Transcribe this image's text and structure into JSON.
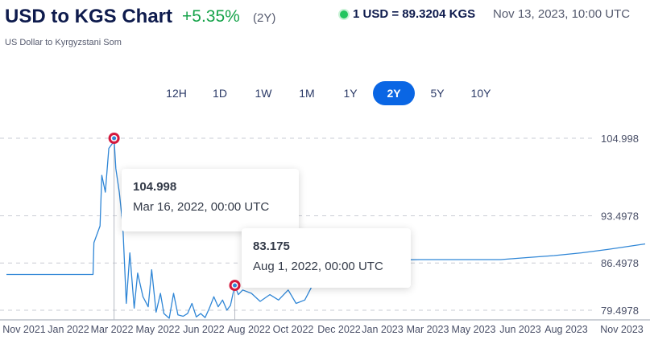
{
  "header": {
    "title": "USD to KGS Chart",
    "change": "+5.35%",
    "period": "(2Y)",
    "rate": "1 USD = 89.3204 KGS",
    "rate_time": "Nov 13, 2023, 10:00 UTC",
    "subtitle": "US Dollar to Kyrgyzstani Som",
    "status_color": "#22c55e"
  },
  "ranges": [
    {
      "label": "12H",
      "active": false
    },
    {
      "label": "1D",
      "active": false
    },
    {
      "label": "1W",
      "active": false
    },
    {
      "label": "1M",
      "active": false
    },
    {
      "label": "1Y",
      "active": false
    },
    {
      "label": "2Y",
      "active": true
    },
    {
      "label": "5Y",
      "active": false
    },
    {
      "label": "10Y",
      "active": false
    }
  ],
  "tooltips": [
    {
      "value": "104.998",
      "time": "Mar 16, 2022, 00:00 UTC"
    },
    {
      "value": "83.175",
      "time": "Aug 1, 2022, 00:00 UTC"
    }
  ],
  "chart_data": {
    "type": "line",
    "line_color": "#2f86d6",
    "marker_color": "#d4193d",
    "grid": "horizontal-dashed",
    "y_ticks": [
      "104.998",
      "93.4978",
      "86.4978",
      "79.4978"
    ],
    "ylim": [
      78.3,
      104.998
    ],
    "x_ticks": [
      "Nov 2021",
      "Jan 2022",
      "Mar 2022",
      "May 2022",
      "Jun 2022",
      "Aug 2022",
      "Oct 2022",
      "Dec 2022",
      "Jan 2023",
      "Mar 2023",
      "May 2023",
      "Jun 2023",
      "Aug 2023",
      "Nov 2023"
    ],
    "series": [
      {
        "x": [
          "2021-11-13",
          "2022-02-20",
          "2022-02-21",
          "2022-02-28",
          "2022-03-02",
          "2022-03-06",
          "2022-03-10",
          "2022-03-14",
          "2022-03-16",
          "2022-03-18",
          "2022-03-22",
          "2022-03-26",
          "2022-03-30",
          "2022-04-03",
          "2022-04-08",
          "2022-04-12",
          "2022-04-18",
          "2022-04-24",
          "2022-04-28",
          "2022-05-03",
          "2022-05-08",
          "2022-05-12",
          "2022-05-18",
          "2022-05-23",
          "2022-05-28",
          "2022-06-03",
          "2022-06-08",
          "2022-06-13",
          "2022-06-18",
          "2022-06-23",
          "2022-06-28",
          "2022-07-03",
          "2022-07-08",
          "2022-07-13",
          "2022-07-18",
          "2022-07-23",
          "2022-07-27",
          "2022-08-01",
          "2022-08-05",
          "2022-08-10",
          "2022-08-20",
          "2022-08-30",
          "2022-09-10",
          "2022-09-20",
          "2022-10-01",
          "2022-10-10",
          "2022-10-20",
          "2022-10-28",
          "2022-11-05",
          "2022-11-20",
          "2022-12-01",
          "2022-12-10",
          "2023-01-01",
          "2023-03-01",
          "2023-05-01",
          "2023-06-01",
          "2023-07-01",
          "2023-08-01",
          "2023-09-01",
          "2023-10-01",
          "2023-11-13"
        ],
        "y": [
          84.8,
          84.8,
          89.5,
          92.0,
          99.5,
          97.0,
          103.5,
          104.2,
          104.998,
          100.5,
          97.0,
          92.0,
          80.5,
          88.0,
          79.8,
          85.0,
          81.5,
          80.0,
          85.5,
          79.2,
          82.0,
          79.0,
          78.3,
          82.0,
          78.8,
          78.6,
          79.0,
          80.5,
          78.5,
          79.0,
          78.4,
          79.8,
          81.5,
          80.0,
          81.0,
          79.5,
          80.2,
          83.175,
          81.8,
          82.5,
          82.0,
          80.8,
          81.8,
          81.0,
          82.5,
          80.5,
          81.0,
          83.0,
          84.5,
          85.5,
          86.5,
          86.7,
          86.9,
          87.0,
          87.0,
          87.0,
          87.3,
          87.6,
          88.0,
          88.5,
          89.32
        ]
      }
    ],
    "markers": [
      {
        "x": "2022-03-16",
        "y": 104.998
      },
      {
        "x": "2022-08-01",
        "y": 83.175
      }
    ]
  }
}
